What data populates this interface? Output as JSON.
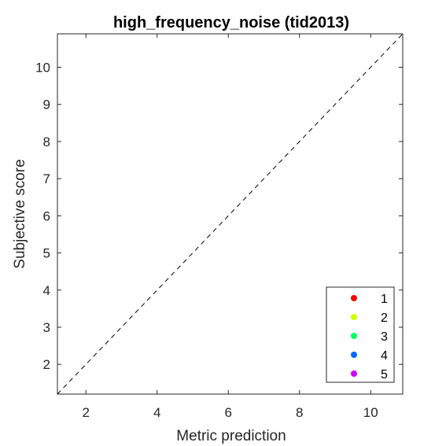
{
  "chart_data": {
    "type": "scatter",
    "title": "high_frequency_noise (tid2013)",
    "xlabel": "Metric prediction",
    "ylabel": "Subjective score",
    "xlim": [
      1.2,
      10.9
    ],
    "ylim": [
      1.2,
      10.9
    ],
    "x_ticks": [
      2,
      4,
      6,
      8,
      10
    ],
    "y_ticks": [
      2,
      3,
      4,
      5,
      6,
      7,
      8,
      9,
      10
    ],
    "grid": false,
    "reference_line": "y = x (dashed)",
    "legend_position": "bottom-right",
    "series": [
      {
        "name": "1",
        "color": "#ff0000",
        "points": []
      },
      {
        "name": "2",
        "color": "#ccff00",
        "points": []
      },
      {
        "name": "3",
        "color": "#00ff66",
        "points": []
      },
      {
        "name": "4",
        "color": "#0066ff",
        "points": []
      },
      {
        "name": "5",
        "color": "#cc00ff",
        "points": []
      }
    ]
  }
}
